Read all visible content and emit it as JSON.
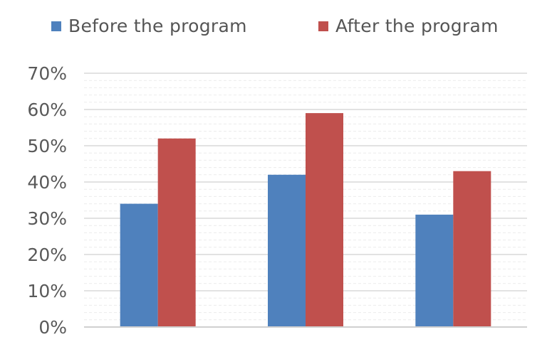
{
  "chart_data": {
    "type": "bar",
    "categories": [
      "",
      "",
      ""
    ],
    "series": [
      {
        "name": "Before the program",
        "values": [
          34,
          42,
          31
        ],
        "color": "#4f81bd"
      },
      {
        "name": "After the program",
        "values": [
          52,
          59,
          43
        ],
        "color": "#c0504d"
      }
    ],
    "title": "",
    "xlabel": "",
    "ylabel": "",
    "ylim": [
      0,
      70
    ],
    "yticks": [
      "0%",
      "10%",
      "20%",
      "30%",
      "40%",
      "50%",
      "60%",
      "70%"
    ],
    "grid": true,
    "legend": "top",
    "gridline_color": "#d9d9d9"
  }
}
